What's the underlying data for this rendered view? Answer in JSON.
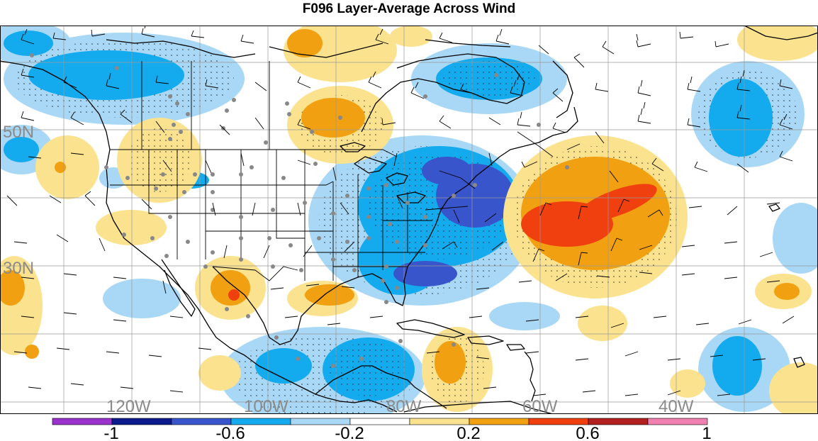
{
  "title": "F096 Layer-Average Across Wind",
  "lat_labels": [
    "50N",
    "30N"
  ],
  "lon_labels": [
    "120W",
    "100W",
    "80W",
    "60W",
    "40W"
  ],
  "colorbar": {
    "ticks": [
      "-1",
      "-0.6",
      "-0.2",
      "0.2",
      "0.6",
      "1"
    ],
    "colors": [
      "#9933cc",
      "#0c1a8c",
      "#3955cc",
      "#14aaee",
      "#a8d8f5",
      "#ffffff",
      "#fbe28e",
      "#f0a010",
      "#f04010",
      "#b22020",
      "#f080b0"
    ]
  },
  "palette": {
    "light_blue": "#a8d8f5",
    "blue": "#14aaee",
    "dark_blue": "#3955cc",
    "light_yellow": "#fbe28e",
    "orange": "#f0a010",
    "red_orange": "#f04010"
  }
}
